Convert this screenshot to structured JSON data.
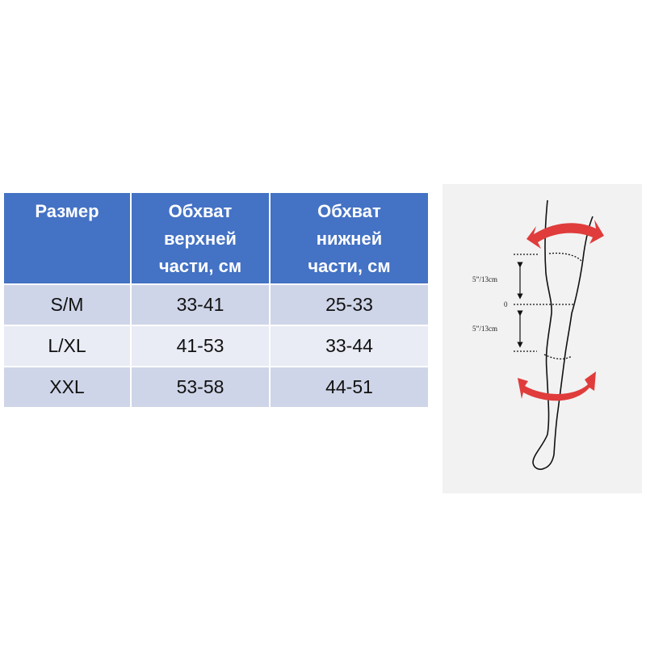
{
  "table": {
    "headers": [
      [
        "Размер"
      ],
      [
        "Обхват",
        "верхней",
        "части, см"
      ],
      [
        "Обхват",
        "нижней",
        "части, см"
      ]
    ],
    "rows": [
      [
        "S/M",
        "33-41",
        "25-33"
      ],
      [
        "L/XL",
        "41-53",
        "33-44"
      ],
      [
        "XXL",
        "53-58",
        "44-51"
      ]
    ]
  },
  "figure": {
    "label_upper": "5”/13cm",
    "label_zero": "0",
    "label_lower": "5”/13cm"
  },
  "colors": {
    "header": "#4472c4",
    "row_dark": "#cfd5e8",
    "row_light": "#e9ebf5",
    "arrow": "#e03c3c"
  }
}
